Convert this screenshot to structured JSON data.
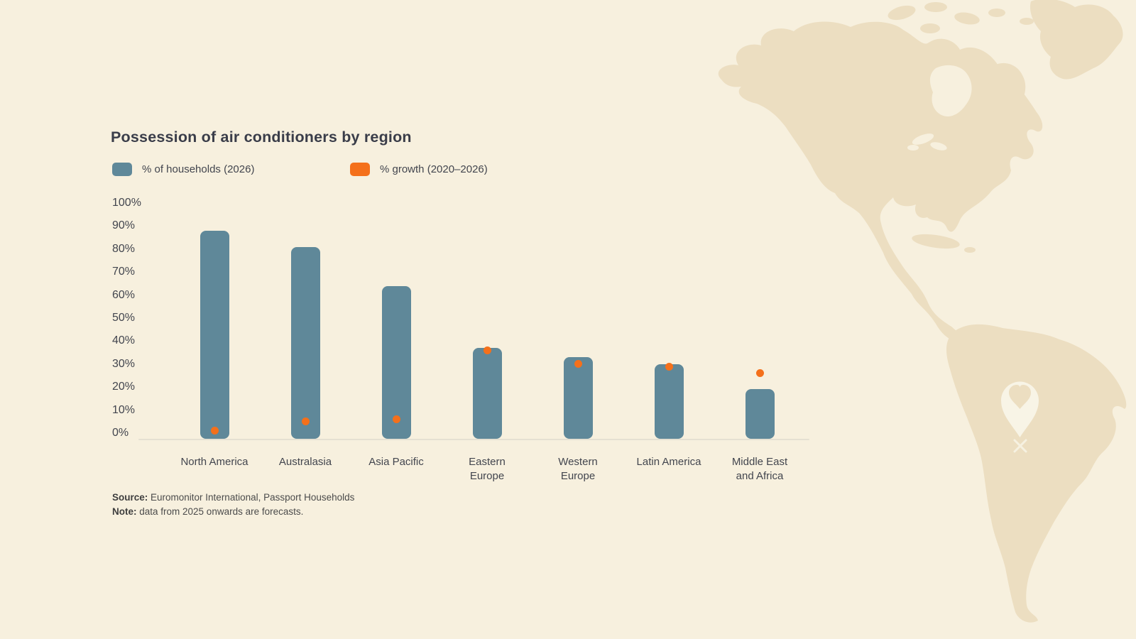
{
  "colors": {
    "background": "#f7f0de",
    "map_silhouette": "#ecdec1",
    "pin": "#f8f4e6",
    "bar_blue": "#5f8899",
    "dot_orange": "#f4701b",
    "title_text": "#3a3d49",
    "axis_text": "#42454e",
    "source_text": "#4b4b4b",
    "axis_line": "#e5e0d2"
  },
  "chart": {
    "title": "Possession of air conditioners by region",
    "legend": [
      {
        "label": "% of households (2026)",
        "swatch_color": "#5f8899"
      },
      {
        "label": "% growth (2020–2026)",
        "swatch_color": "#f4701b"
      }
    ],
    "y_axis": {
      "ticks": [
        "100%",
        "90%",
        "80%",
        "70%",
        "60%",
        "50%",
        "40%",
        "30%",
        "20%",
        "10%",
        "0%"
      ]
    },
    "x_tick_labels": [
      [
        "North America"
      ],
      [
        "Australasia"
      ],
      [
        "Asia Pacific"
      ],
      [
        "Eastern",
        "Europe"
      ],
      [
        "Western",
        "Europe"
      ],
      [
        "Latin America"
      ],
      [
        "Middle East",
        "and Africa"
      ]
    ],
    "source_label": "Source:",
    "source_text": " Euromonitor International, Passport Households",
    "note_label": "Note:",
    "note_text": " data from 2025 onwards are forecasts."
  },
  "chart_data": {
    "type": "bar",
    "title": "Possession of air conditioners by region",
    "categories": [
      "North America",
      "Australasia",
      "Asia Pacific",
      "Eastern Europe",
      "Western Europe",
      "Latin America",
      "Middle East and Africa"
    ],
    "series": [
      {
        "name": "% of households (2026)",
        "type": "bar",
        "color": "#5f8899",
        "values": [
          88,
          81,
          64,
          37,
          33,
          30,
          19
        ]
      },
      {
        "name": "% growth (2020–2026)",
        "type": "scatter",
        "color": "#f4701b",
        "values": [
          1,
          5,
          6,
          36,
          30,
          29,
          26
        ]
      }
    ],
    "ylabel": "",
    "xlabel": "",
    "ylim": [
      0,
      100
    ],
    "grid": false,
    "legend_position": "top-left"
  },
  "map": {
    "description": "Americas silhouette",
    "pin_icon": "heart-location-pin",
    "marker_icon": "x-marker"
  }
}
